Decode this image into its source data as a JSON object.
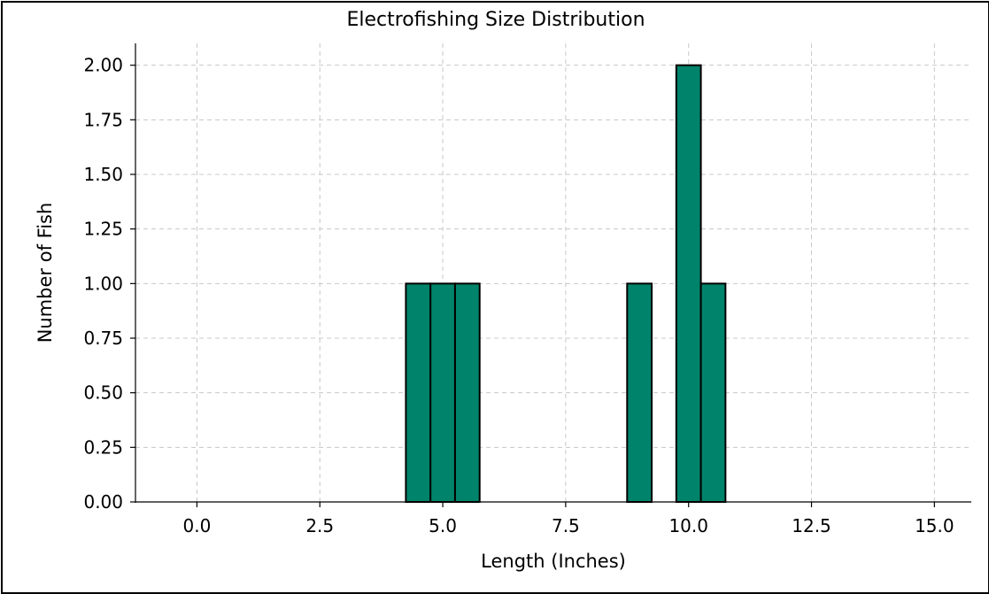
{
  "chart_data": {
    "type": "bar",
    "title": "Electrofishing Size Distribution",
    "xlabel": "Length (Inches)",
    "ylabel": "Number of Fish",
    "xlim": [
      -1.25,
      15.75
    ],
    "ylim": [
      0,
      2.1
    ],
    "grid": true,
    "bar_color": "#00836b",
    "edge_color": "#000000",
    "x_ticks": [
      "0.0",
      "2.5",
      "5.0",
      "7.5",
      "10.0",
      "12.5",
      "15.0"
    ],
    "y_ticks": [
      "0.00",
      "0.25",
      "0.50",
      "0.75",
      "1.00",
      "1.25",
      "1.50",
      "1.75",
      "2.00"
    ],
    "bins": [
      {
        "start": 4.25,
        "end": 4.75,
        "count": 1
      },
      {
        "start": 4.75,
        "end": 5.25,
        "count": 1
      },
      {
        "start": 5.25,
        "end": 5.75,
        "count": 1
      },
      {
        "start": 8.75,
        "end": 9.25,
        "count": 1
      },
      {
        "start": 9.75,
        "end": 10.25,
        "count": 2
      },
      {
        "start": 10.25,
        "end": 10.75,
        "count": 1
      }
    ]
  }
}
